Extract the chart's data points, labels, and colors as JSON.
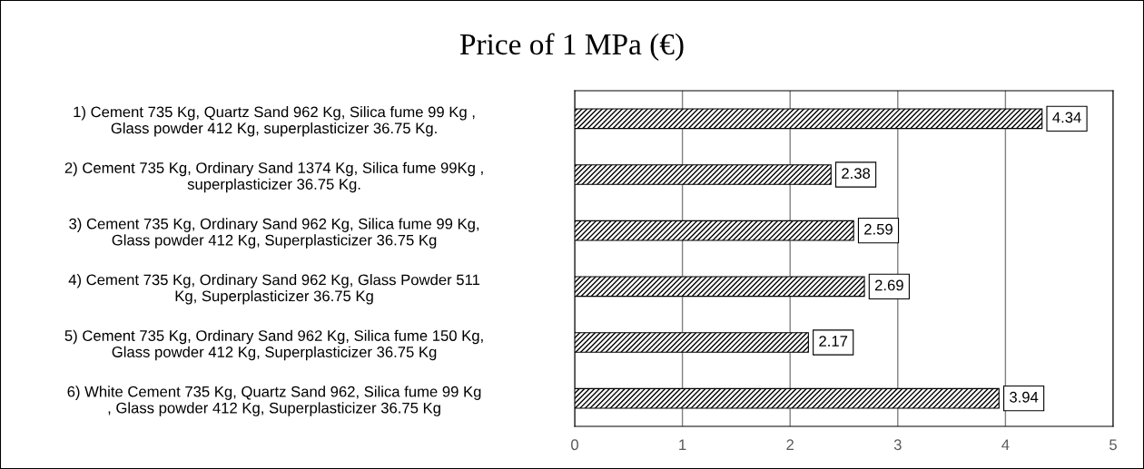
{
  "chart_data": {
    "type": "bar",
    "orientation": "horizontal",
    "title": "Price of 1 MPa (€)",
    "categories": [
      "1) Cement 735 Kg, Quartz Sand 962 Kg, Silica fume 99 Kg ,\nGlass powder 412 Kg, superplasticizer 36.75 Kg.",
      "2) Cement 735 Kg, Ordinary Sand 1374 Kg, Silica fume 99Kg ,\nsuperplasticizer 36.75 Kg.",
      "3) Cement 735 Kg, Ordinary Sand 962 Kg, Silica fume 99 Kg,\nGlass powder 412 Kg, Superplasticizer 36.75 Kg",
      "4) Cement 735 Kg, Ordinary Sand 962 Kg, Glass Powder 511\nKg, Superplasticizer 36.75 Kg",
      "5) Cement 735 Kg, Ordinary Sand 962 Kg, Silica fume 150 Kg,\nGlass powder 412 Kg, Superplasticizer 36.75 Kg",
      "6) White Cement 735 Kg, Quartz Sand 962, Silica fume 99 Kg\n, Glass powder 412 Kg, Superplasticizer 36.75 Kg"
    ],
    "values": [
      4.34,
      2.38,
      2.59,
      2.69,
      2.17,
      3.94
    ],
    "color": "#000000",
    "xlim": [
      0,
      5
    ],
    "xticks": [
      0,
      1,
      2,
      3,
      4,
      5
    ],
    "grid": "x",
    "data_labels": true
  }
}
